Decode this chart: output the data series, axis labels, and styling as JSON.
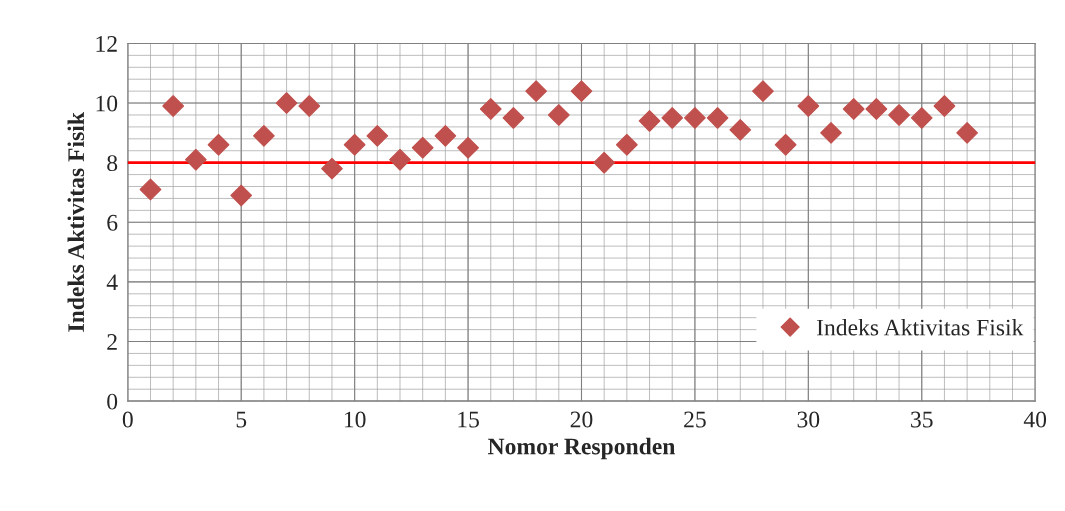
{
  "chart_data": {
    "type": "scatter",
    "xlabel": "Nomor Responden",
    "ylabel": "Indeks Aktivitas Fisik",
    "x": [
      1,
      2,
      3,
      4,
      5,
      6,
      7,
      8,
      9,
      10,
      11,
      12,
      13,
      14,
      15,
      16,
      17,
      18,
      19,
      20,
      21,
      22,
      23,
      24,
      25,
      26,
      27,
      28,
      29,
      30,
      31,
      32,
      33,
      34,
      35,
      36,
      37
    ],
    "series": [
      {
        "name": "Indeks Aktivitas Fisik",
        "color": "#c0504d",
        "values": [
          7.1,
          9.9,
          8.1,
          8.6,
          6.9,
          8.9,
          10,
          9.9,
          7.8,
          8.6,
          8.9,
          8.1,
          8.5,
          8.9,
          8.5,
          9.8,
          9.5,
          10.4,
          9.6,
          10.4,
          8.0,
          8.6,
          9.4,
          9.5,
          9.5,
          9.5,
          9.1,
          10.4,
          8.6,
          9.9,
          9.0,
          9.8,
          9.8,
          9.6,
          9.5,
          9.9,
          9.0
        ]
      }
    ],
    "xlim": [
      0,
      40
    ],
    "xticks": [
      0,
      5,
      10,
      15,
      20,
      25,
      30,
      35,
      40
    ],
    "ylim": [
      0,
      12
    ],
    "yticks": [
      0,
      2,
      4,
      6,
      8,
      10,
      12
    ],
    "ref_lines": [
      {
        "axis": "y",
        "value": 8,
        "color": "#ff0000"
      }
    ],
    "grid": true,
    "legend": "right",
    "marker": "diamond"
  }
}
